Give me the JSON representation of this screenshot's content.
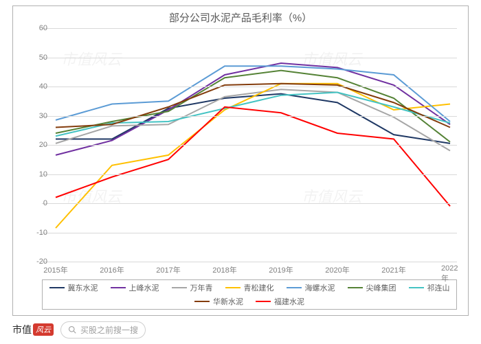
{
  "chart": {
    "title": "部分公司水泥产品毛利率（%）",
    "title_fontsize": 15,
    "title_color": "#5a5a5a",
    "background_color": "#ffffff",
    "border_color": "#b0b0b0",
    "grid_color": "#d9d9d9",
    "ylim": [
      -20,
      60
    ],
    "yticks": [
      -20,
      -10,
      0,
      10,
      20,
      30,
      40,
      50,
      60
    ],
    "categories": [
      "2015年",
      "2016年",
      "2017年",
      "2018年",
      "2019年",
      "2020年",
      "2021年",
      "2022年"
    ],
    "x_label_fontsize": 11,
    "y_label_fontsize": 11,
    "axis_label_color": "#808080",
    "line_width": 2,
    "series": [
      {
        "name": "冀东水泥",
        "color": "#1f3864",
        "values": [
          22,
          22,
          32.5,
          36,
          37.5,
          34.5,
          23.5,
          20.5
        ]
      },
      {
        "name": "上峰水泥",
        "color": "#7030a0",
        "values": [
          16.5,
          21.5,
          32,
          44,
          48,
          46.5,
          40.5,
          27
        ]
      },
      {
        "name": "万年青",
        "color": "#a6a6a6",
        "values": [
          20.5,
          26.5,
          27,
          36.5,
          39,
          38,
          29.5,
          18
        ]
      },
      {
        "name": "青松建化",
        "color": "#ffc000",
        "values": [
          -8.5,
          13,
          16.5,
          32,
          41,
          41,
          32,
          34
        ]
      },
      {
        "name": "海螺水泥",
        "color": "#5b9bd5",
        "values": [
          28.5,
          34,
          35,
          47,
          47,
          46,
          44,
          28
        ]
      },
      {
        "name": "尖峰集团",
        "color": "#548235",
        "values": [
          24,
          28,
          31.5,
          43,
          45.5,
          43,
          36,
          21
        ]
      },
      {
        "name": "祁连山",
        "color": "#44c3c3",
        "values": [
          23,
          27.5,
          28,
          32.5,
          37,
          38,
          33,
          27.5
        ]
      },
      {
        "name": "华新水泥",
        "color": "#833c0c",
        "values": [
          26,
          27,
          33,
          40.5,
          41,
          40.5,
          34.5,
          26
        ]
      },
      {
        "name": "福建水泥",
        "color": "#ff0000",
        "values": [
          2,
          9,
          15,
          33,
          31,
          24,
          22,
          -1
        ]
      }
    ],
    "legend": {
      "border_color": "#b0b0b0",
      "font_size": 11,
      "text_color": "#606060",
      "line_length": 22
    },
    "watermark_text": "市值风云",
    "watermark_color": "rgba(0,0,0,0.05)"
  },
  "bottom_bar": {
    "logo_main": "市值",
    "logo_badge": "风云",
    "logo_badge_bg": "#d43a2f",
    "search_placeholder": "买股之前搜一搜",
    "search_icon_color": "#a0a0a0"
  }
}
